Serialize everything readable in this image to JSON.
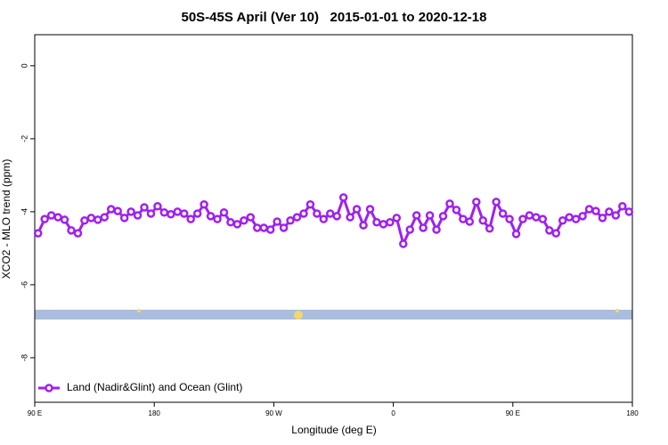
{
  "chart_data": {
    "type": "line",
    "title": "50S-45S April (Ver 10)   2015-01-01 to 2020-12-18",
    "xlabel": "Longitude (deg E)",
    "ylabel": "XCO2 - MLO trend (ppm)",
    "xlim": [
      90,
      540
    ],
    "xticks": [
      {
        "value": 90,
        "label": "90 E"
      },
      180,
      {
        "value": 270,
        "label": "90 W"
      },
      {
        "value": 360,
        "label": "0"
      },
      {
        "value": 450,
        "label": "90 E"
      },
      {
        "value": 540,
        "label": "180"
      }
    ],
    "ylim": [
      -9.22,
      0.85
    ],
    "yticks": [
      0,
      -2,
      -4,
      -6,
      -8
    ],
    "legend": "bottom-left",
    "x": [
      92.5,
      97.5,
      102.5,
      107.5,
      112.5,
      117.5,
      122.5,
      127.5,
      132.5,
      137.5,
      142.5,
      147.5,
      152.5,
      157.5,
      162.5,
      167.5,
      172.5,
      177.5,
      182.5,
      187.5,
      192.5,
      197.5,
      202.5,
      207.5,
      212.5,
      217.5,
      222.5,
      227.5,
      232.5,
      237.5,
      242.5,
      247.5,
      252.5,
      257.5,
      262.5,
      267.5,
      272.5,
      277.5,
      282.5,
      287.5,
      292.5,
      297.5,
      302.5,
      307.5,
      312.5,
      317.5,
      322.5,
      327.5,
      332.5,
      337.5,
      342.5,
      347.5,
      352.5,
      357.5,
      362.5,
      367.5,
      372.5,
      377.5,
      382.5,
      387.5,
      392.5,
      397.5,
      402.5,
      407.5,
      412.5,
      417.5,
      422.5,
      427.5,
      432.5,
      437.5,
      442.5,
      447.5,
      452.5,
      457.5,
      462.5,
      467.5,
      472.5,
      477.5,
      482.5,
      487.5,
      492.5,
      497.5,
      502.5,
      507.5,
      512.5,
      517.5,
      522.5,
      527.5,
      532.5,
      537.5
    ],
    "series": [
      {
        "name": "Land (Nadir&Glint) and Ocean (Glint)",
        "color": "#a020f0",
        "values": [
          -4.59,
          -4.2,
          -4.1,
          -4.15,
          -4.22,
          -4.51,
          -4.59,
          -4.24,
          -4.17,
          -4.22,
          -4.15,
          -3.93,
          -3.98,
          -4.17,
          -4.0,
          -4.1,
          -3.88,
          -4.05,
          -3.85,
          -4.02,
          -4.07,
          -4.0,
          -4.05,
          -4.2,
          -4.05,
          -3.8,
          -4.12,
          -4.2,
          -4.02,
          -4.29,
          -4.34,
          -4.24,
          -4.15,
          -4.44,
          -4.44,
          -4.49,
          -4.27,
          -4.44,
          -4.24,
          -4.15,
          -4.05,
          -3.8,
          -4.05,
          -4.2,
          -4.05,
          -4.12,
          -3.61,
          -4.15,
          -3.93,
          -4.37,
          -3.93,
          -4.29,
          -4.34,
          -4.29,
          -4.17,
          -4.88,
          -4.49,
          -4.1,
          -4.44,
          -4.1,
          -4.49,
          -4.12,
          -3.78,
          -3.95,
          -4.2,
          -4.27,
          -3.73,
          -4.24,
          -4.46,
          -3.73,
          -4.05,
          -4.2,
          -4.61,
          -4.2,
          -4.1,
          -4.15,
          -4.2,
          -4.51,
          -4.59,
          -4.24,
          -4.15,
          -4.2,
          -4.12,
          -3.93,
          -3.98,
          -4.17,
          -4.0,
          -4.1,
          -3.85,
          -4.0
        ]
      }
    ]
  }
}
